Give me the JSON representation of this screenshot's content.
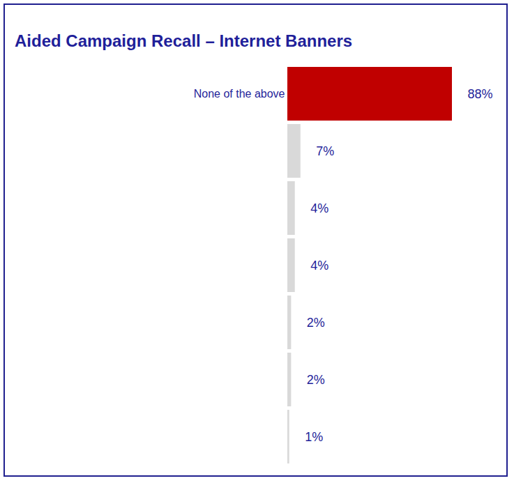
{
  "chart_data": {
    "type": "bar",
    "orientation": "horizontal",
    "title": "Aided Campaign Recall – Internet Banners",
    "categories": [
      "None of the above",
      null,
      null,
      null,
      null,
      null,
      null
    ],
    "values": [
      88,
      7,
      4,
      4,
      2,
      2,
      1
    ],
    "value_labels": [
      "88%",
      "7%",
      "4%",
      "4%",
      "2%",
      "2%",
      "1%"
    ],
    "colors": [
      "#c00000",
      "#d9d9d9",
      "#d9d9d9",
      "#d9d9d9",
      "#d9d9d9",
      "#d9d9d9",
      "#d9d9d9"
    ],
    "data_labels": true,
    "tick_labels": "y",
    "grid": false
  }
}
